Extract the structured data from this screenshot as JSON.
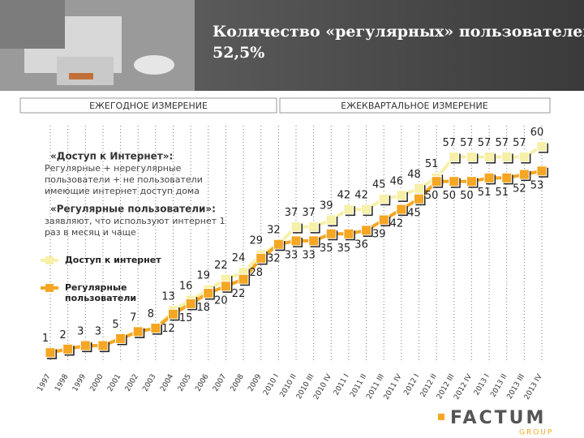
{
  "header": {
    "title": "Количество «регулярных» пользователей",
    "subtitle": "52,5%"
  },
  "sections": [
    "ЕЖЕГОДНОЕ ИЗМЕРЕНИЕ",
    "ЕЖЕКВАРТАЛЬНОЕ ИЗМЕРЕНИЕ"
  ],
  "notes": [
    {
      "title": "«Доступ к Интернет»:",
      "text": [
        "Регулярные + нерегулярные",
        "пользователи + не пользователи",
        "имеющие интернет доступ дома"
      ]
    },
    {
      "title": "«Регулярные пользователи»:",
      "text": [
        "заявляют, что используют интернет 1",
        "раз в месяц и чаще"
      ]
    }
  ],
  "logo": {
    "name": "FACTUM",
    "group": "GROUP"
  },
  "chart_data": {
    "type": "line",
    "categories": [
      "1997",
      "1998",
      "1999",
      "2000",
      "2001",
      "2002",
      "2003",
      "2004",
      "2005",
      "2006",
      "2007",
      "2008",
      "2009",
      "2010 I",
      "2010 II",
      "2010 III",
      "2010 IV",
      "2011 I",
      "2011 II",
      "2011 III",
      "2011 IV",
      "2012 I",
      "2012 II",
      "2012 III",
      "2012 IV",
      "2013 I",
      "2013 II",
      "2013 III",
      "2013 IV"
    ],
    "series": [
      {
        "name": "Доступ к интернет",
        "color": "#f6f0a8",
        "values": [
          1,
          2,
          3,
          3,
          5,
          7,
          8,
          13,
          16,
          19,
          22,
          24,
          29,
          32,
          37,
          37,
          39,
          42,
          42,
          45,
          46,
          48,
          51,
          57,
          57,
          57,
          57,
          57,
          60
        ]
      },
      {
        "name": "Регулярные пользователи",
        "color": "#f5a623",
        "values": [
          1,
          2,
          3,
          3,
          5,
          7,
          8,
          12,
          15,
          18,
          20,
          22,
          28,
          32,
          33,
          33,
          35,
          35,
          36,
          39,
          42,
          45,
          50,
          50,
          50,
          51,
          51,
          52,
          53
        ]
      }
    ],
    "ylim": [
      0,
      62
    ],
    "grid": true
  }
}
